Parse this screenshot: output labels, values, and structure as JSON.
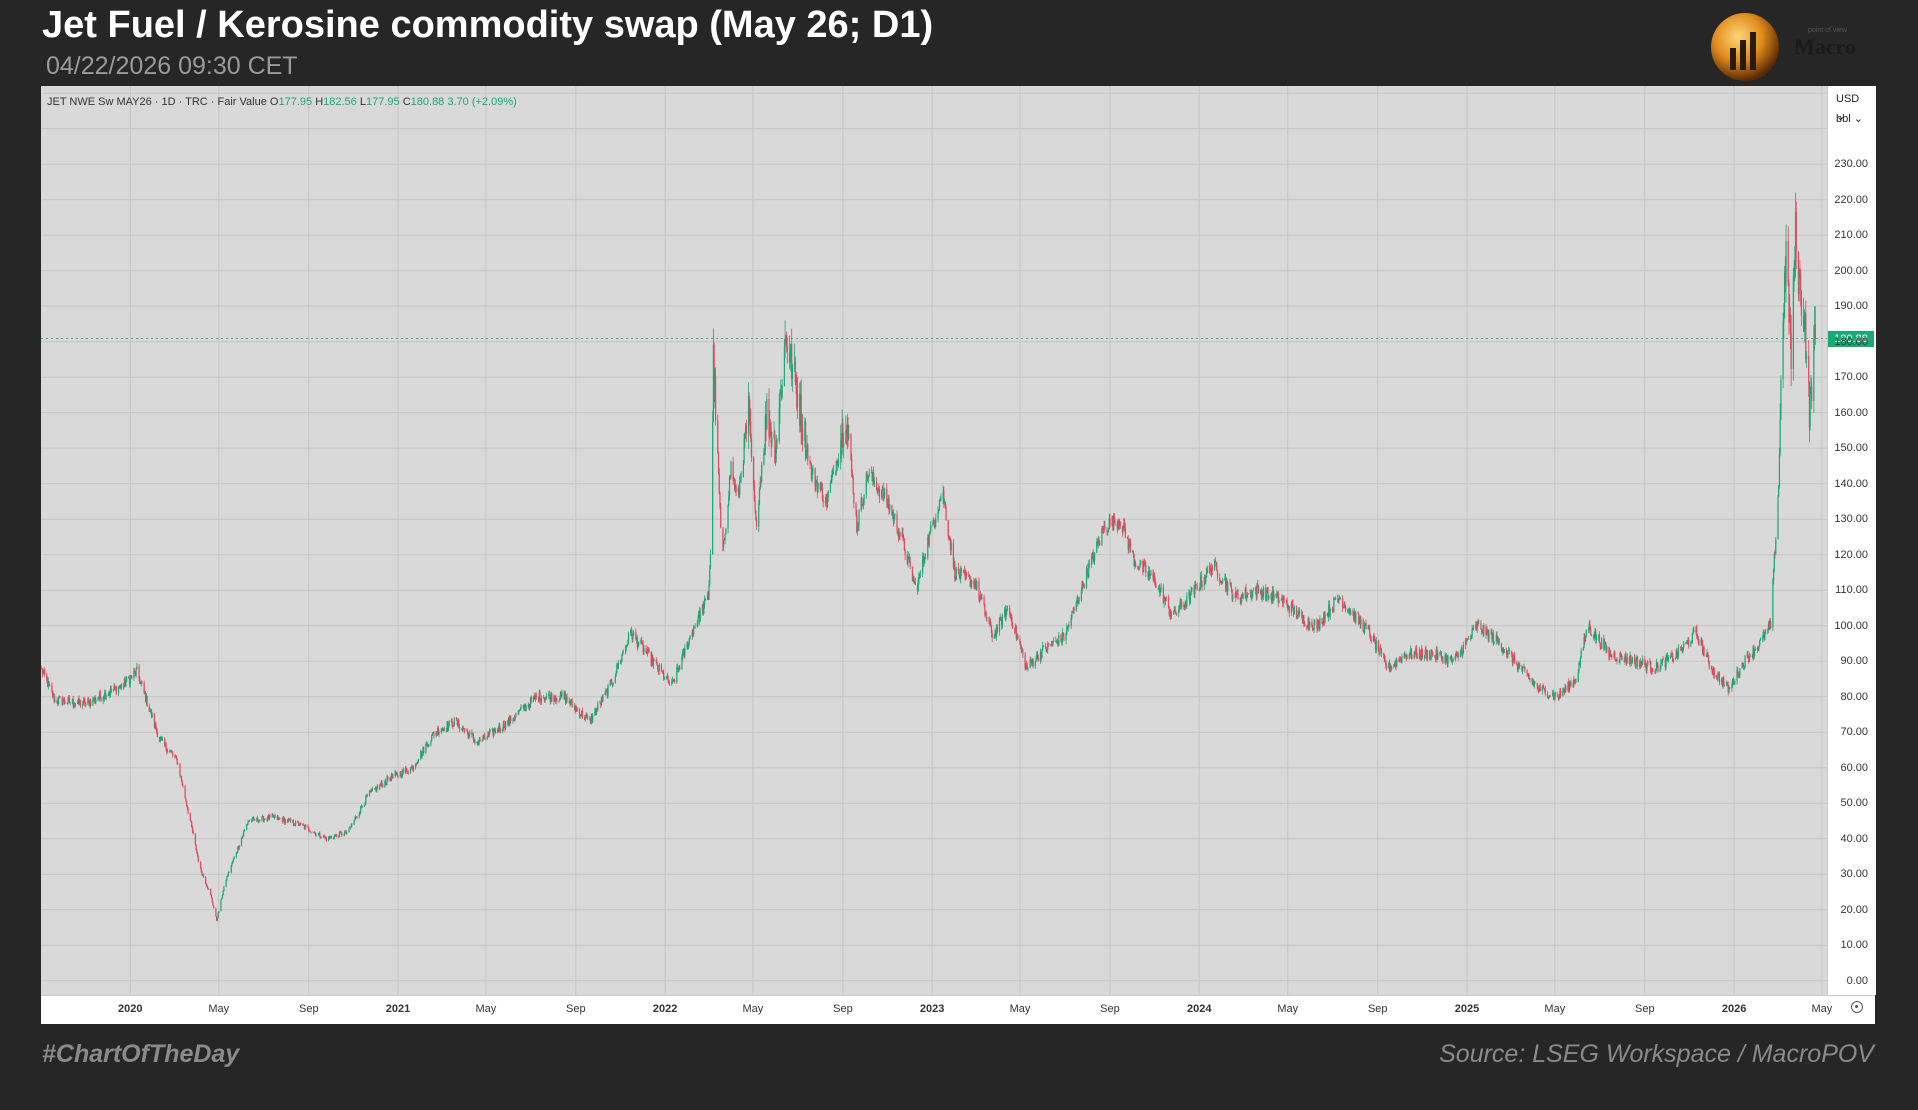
{
  "header": {
    "title": "Jet Fuel / Kerosine commodity swap (May 26; D1)",
    "timestamp": "04/22/2026 09:30 CET"
  },
  "logo": {
    "text": "Macro",
    "tagline": "point of view"
  },
  "legend": {
    "symbol": "JET NWE Sw MAY26 · 1D · TRC · Fair Value",
    "o_label": "O",
    "o_value": "177.95",
    "h_label": "H",
    "h_value": "182.56",
    "l_label": "L",
    "l_value": "177.95",
    "c_label": "C",
    "c_value": "180.88",
    "change": "3.70 (+2.09%)"
  },
  "axis_controls": {
    "currency": "USD ⌄",
    "unit": "bbl ⌄"
  },
  "footer": {
    "hashtag": "#ChartOfTheDay",
    "source": "Source: LSEG Workspace / MacroPOV"
  },
  "colors": {
    "up": "#19a974",
    "down": "#e0475b",
    "plot_bg": "#d9d9d9",
    "grid": "#c4c4c4",
    "page_bg": "#262626"
  },
  "chart_data": {
    "type": "candlestick",
    "y_ticks": [
      "0.00",
      "10.00",
      "20.00",
      "30.00",
      "40.00",
      "50.00",
      "60.00",
      "70.00",
      "80.00",
      "90.00",
      "100.00",
      "110.00",
      "120.00",
      "130.00",
      "140.00",
      "150.00",
      "160.00",
      "170.00",
      "180.00",
      "190.00",
      "200.00",
      "210.00",
      "220.00",
      "230.00"
    ],
    "ylim": [
      -4,
      252
    ],
    "xlim": [
      "2019-09-01",
      "2026-05-08"
    ],
    "last_price": 180.88,
    "last_price_label": "180.88",
    "x_ticks": [
      {
        "date": "2020-01-01",
        "label": "2020",
        "year": true
      },
      {
        "date": "2020-05-01",
        "label": "May"
      },
      {
        "date": "2020-09-01",
        "label": "Sep"
      },
      {
        "date": "2021-01-01",
        "label": "2021",
        "year": true
      },
      {
        "date": "2021-05-01",
        "label": "May"
      },
      {
        "date": "2021-09-01",
        "label": "Sep"
      },
      {
        "date": "2022-01-01",
        "label": "2022",
        "year": true
      },
      {
        "date": "2022-05-01",
        "label": "May"
      },
      {
        "date": "2022-09-01",
        "label": "Sep"
      },
      {
        "date": "2023-01-01",
        "label": "2023",
        "year": true
      },
      {
        "date": "2023-05-01",
        "label": "May"
      },
      {
        "date": "2023-09-01",
        "label": "Sep"
      },
      {
        "date": "2024-01-01",
        "label": "2024",
        "year": true
      },
      {
        "date": "2024-05-01",
        "label": "May"
      },
      {
        "date": "2024-09-01",
        "label": "Sep"
      },
      {
        "date": "2025-01-01",
        "label": "2025",
        "year": true
      },
      {
        "date": "2025-05-01",
        "label": "May"
      },
      {
        "date": "2025-09-01",
        "label": "Sep"
      },
      {
        "date": "2026-01-01",
        "label": "2026",
        "year": true
      },
      {
        "date": "2026-05-01",
        "label": "May"
      }
    ],
    "price_path": [
      [
        "2019-09-01",
        88
      ],
      [
        "2019-09-20",
        79
      ],
      [
        "2019-11-01",
        78
      ],
      [
        "2019-12-20",
        83
      ],
      [
        "2020-01-10",
        87
      ],
      [
        "2020-02-10",
        68
      ],
      [
        "2020-03-05",
        62
      ],
      [
        "2020-03-20",
        48
      ],
      [
        "2020-04-05",
        32
      ],
      [
        "2020-04-20",
        24
      ],
      [
        "2020-04-28",
        17
      ],
      [
        "2020-05-10",
        28
      ],
      [
        "2020-06-10",
        45
      ],
      [
        "2020-07-15",
        46
      ],
      [
        "2020-08-20",
        44
      ],
      [
        "2020-09-25",
        40
      ],
      [
        "2020-10-25",
        42
      ],
      [
        "2020-11-20",
        52
      ],
      [
        "2020-12-20",
        57
      ],
      [
        "2021-01-20",
        60
      ],
      [
        "2021-02-20",
        70
      ],
      [
        "2021-03-20",
        73
      ],
      [
        "2021-04-20",
        67
      ],
      [
        "2021-06-01",
        73
      ],
      [
        "2021-07-10",
        80
      ],
      [
        "2021-08-15",
        80
      ],
      [
        "2021-09-20",
        73
      ],
      [
        "2021-10-20",
        84
      ],
      [
        "2021-11-15",
        98
      ],
      [
        "2021-12-15",
        90
      ],
      [
        "2022-01-10",
        83
      ],
      [
        "2022-02-10",
        100
      ],
      [
        "2022-03-01",
        108
      ],
      [
        "2022-03-05",
        125
      ],
      [
        "2022-03-08",
        175
      ],
      [
        "2022-03-20",
        118
      ],
      [
        "2022-04-01",
        145
      ],
      [
        "2022-04-10",
        135
      ],
      [
        "2022-04-25",
        160
      ],
      [
        "2022-05-05",
        128
      ],
      [
        "2022-05-20",
        160
      ],
      [
        "2022-06-01",
        150
      ],
      [
        "2022-06-15",
        182
      ],
      [
        "2022-07-01",
        165
      ],
      [
        "2022-07-20",
        143
      ],
      [
        "2022-08-10",
        135
      ],
      [
        "2022-08-25",
        148
      ],
      [
        "2022-09-05",
        160
      ],
      [
        "2022-09-20",
        128
      ],
      [
        "2022-10-05",
        143
      ],
      [
        "2022-11-01",
        135
      ],
      [
        "2022-11-20",
        125
      ],
      [
        "2022-12-10",
        110
      ],
      [
        "2022-12-25",
        123
      ],
      [
        "2023-01-15",
        138
      ],
      [
        "2023-02-01",
        115
      ],
      [
        "2023-03-01",
        112
      ],
      [
        "2023-03-25",
        97
      ],
      [
        "2023-04-15",
        105
      ],
      [
        "2023-05-10",
        88
      ],
      [
        "2023-06-01",
        93
      ],
      [
        "2023-07-01",
        97
      ],
      [
        "2023-08-01",
        115
      ],
      [
        "2023-08-25",
        128
      ],
      [
        "2023-09-15",
        130
      ],
      [
        "2023-10-05",
        118
      ],
      [
        "2023-11-01",
        113
      ],
      [
        "2023-11-25",
        103
      ],
      [
        "2023-12-15",
        107
      ],
      [
        "2024-01-20",
        117
      ],
      [
        "2024-02-20",
        108
      ],
      [
        "2024-03-20",
        110
      ],
      [
        "2024-04-25",
        107
      ],
      [
        "2024-05-20",
        102
      ],
      [
        "2024-06-10",
        100
      ],
      [
        "2024-07-10",
        108
      ],
      [
        "2024-08-20",
        98
      ],
      [
        "2024-09-15",
        88
      ],
      [
        "2024-10-10",
        92
      ],
      [
        "2024-11-15",
        92
      ],
      [
        "2024-12-15",
        90
      ],
      [
        "2025-01-15",
        100
      ],
      [
        "2025-02-15",
        95
      ],
      [
        "2025-03-15",
        88
      ],
      [
        "2025-04-10",
        82
      ],
      [
        "2025-05-05",
        80
      ],
      [
        "2025-05-30",
        85
      ],
      [
        "2025-06-15",
        100
      ],
      [
        "2025-07-15",
        92
      ],
      [
        "2025-08-20",
        90
      ],
      [
        "2025-09-15",
        88
      ],
      [
        "2025-10-15",
        92
      ],
      [
        "2025-11-10",
        98
      ],
      [
        "2025-12-01",
        88
      ],
      [
        "2025-12-25",
        82
      ],
      [
        "2026-01-15",
        90
      ],
      [
        "2026-02-05",
        95
      ],
      [
        "2026-02-20",
        100
      ],
      [
        "2026-03-03",
        140
      ],
      [
        "2026-03-08",
        185
      ],
      [
        "2026-03-14",
        205
      ],
      [
        "2026-03-20",
        175
      ],
      [
        "2026-03-26",
        210
      ],
      [
        "2026-04-01",
        195
      ],
      [
        "2026-04-08",
        185
      ],
      [
        "2026-04-14",
        160
      ],
      [
        "2026-04-20",
        178
      ],
      [
        "2026-04-22",
        180.88
      ]
    ]
  }
}
